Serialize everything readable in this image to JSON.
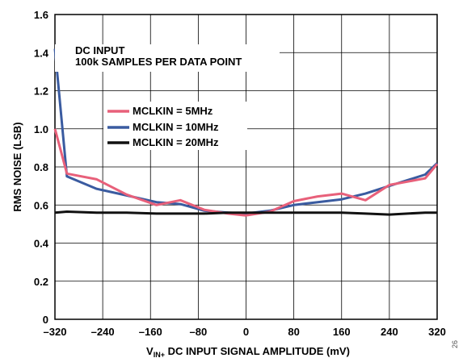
{
  "chart_data": {
    "type": "line",
    "title": "",
    "xlabel": {
      "main": "V",
      "sub": "IN+",
      "rest": " DC INPUT SIGNAL AMPLITUDE (mV)"
    },
    "ylabel": "RMS NOISE (LSB)",
    "xlim": [
      -320,
      320
    ],
    "ylim": [
      0,
      1.6
    ],
    "x_ticks": [
      -320,
      -240,
      -160,
      -80,
      0,
      80,
      160,
      240,
      320
    ],
    "y_ticks": [
      0,
      0.2,
      0.4,
      0.6,
      0.8,
      1.0,
      1.2,
      1.4,
      1.6
    ],
    "x_tick_labels": [
      "–320",
      "–240",
      "–160",
      "–80",
      "0",
      "80",
      "160",
      "240",
      "320"
    ],
    "y_tick_labels": [
      "0",
      "0.2",
      "0.4",
      "0.6",
      "0.8",
      "1.0",
      "1.2",
      "1.4",
      "1.6"
    ],
    "grid": true,
    "annotations": [
      "DC INPUT",
      "100k SAMPLES PER DATA POINT"
    ],
    "legend_position": "center-left",
    "series": [
      {
        "name": "MCLKIN = 5MHz",
        "color": "#e8607a",
        "x": [
          -320,
          -300,
          -250,
          -200,
          -150,
          -110,
          -70,
          -30,
          0,
          40,
          80,
          120,
          160,
          200,
          240,
          300,
          320
        ],
        "y": [
          1.0,
          0.765,
          0.735,
          0.655,
          0.6,
          0.625,
          0.575,
          0.555,
          0.545,
          0.565,
          0.62,
          0.645,
          0.66,
          0.625,
          0.705,
          0.74,
          0.815
        ]
      },
      {
        "name": "MCLKIN = 10MHz",
        "color": "#3a5ba0",
        "x": [
          -320,
          -300,
          -250,
          -200,
          -150,
          -110,
          -70,
          -30,
          0,
          40,
          80,
          120,
          160,
          200,
          240,
          300,
          320
        ],
        "y": [
          1.42,
          0.75,
          0.685,
          0.65,
          0.615,
          0.605,
          0.57,
          0.56,
          0.555,
          0.57,
          0.6,
          0.615,
          0.63,
          0.66,
          0.7,
          0.76,
          0.82
        ]
      },
      {
        "name": "MCLKIN = 20MHz",
        "color": "#111111",
        "x": [
          -320,
          -300,
          -250,
          -200,
          -150,
          -110,
          -70,
          -30,
          0,
          40,
          80,
          120,
          160,
          200,
          240,
          300,
          320
        ],
        "y": [
          0.56,
          0.565,
          0.56,
          0.56,
          0.555,
          0.555,
          0.555,
          0.56,
          0.56,
          0.56,
          0.56,
          0.56,
          0.56,
          0.555,
          0.55,
          0.56,
          0.56
        ]
      }
    ]
  },
  "figure_id": "26"
}
